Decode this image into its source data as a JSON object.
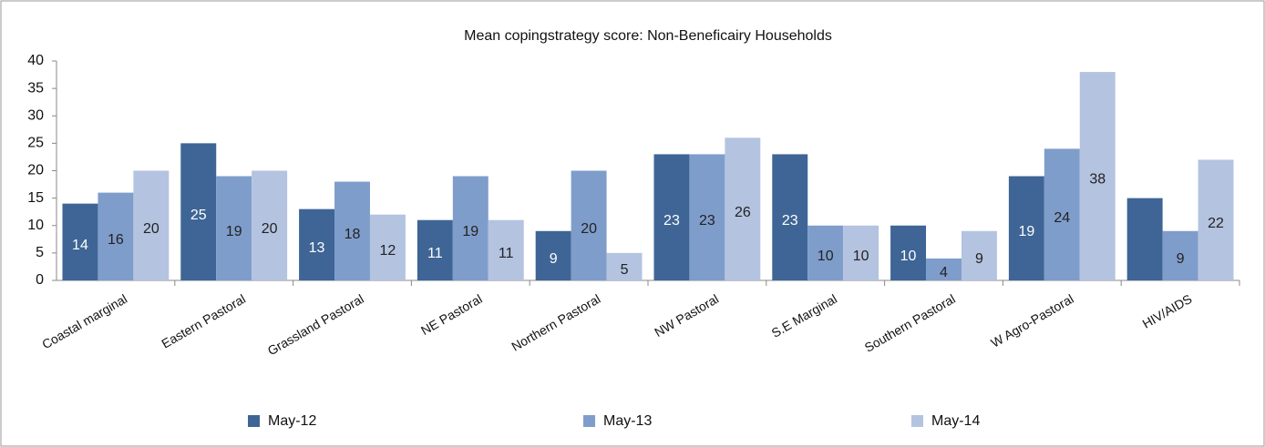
{
  "chart_data": {
    "type": "bar",
    "title": "Mean copingstrategy score:  Non-Beneficairy Households",
    "categories": [
      "Coastal marginal",
      "Eastern Pastoral",
      "Grassland Pastoral",
      "NE Pastoral",
      "Northern Pastoral",
      "NW Pastoral",
      "S.E Marginal",
      "Southern Pastoral",
      "W Agro-Pastoral",
      "HIV/AIDS"
    ],
    "series": [
      {
        "name": "May-12",
        "color": "#3e6595",
        "values": [
          14,
          25,
          13,
          11,
          9,
          23,
          23,
          10,
          19,
          15
        ],
        "value_labels": [
          "14",
          "25",
          "13",
          "11",
          "9",
          "23",
          "23",
          "10",
          "19",
          null
        ]
      },
      {
        "name": "May-13",
        "color": "#7f9dcb",
        "values": [
          16,
          19,
          18,
          19,
          20,
          23,
          10,
          4,
          24,
          9
        ]
      },
      {
        "name": "May-14",
        "color": "#b4c3e0",
        "values": [
          20,
          20,
          12,
          11,
          5,
          26,
          10,
          9,
          38,
          22
        ]
      }
    ],
    "ylim": [
      0,
      40
    ],
    "yticks": [
      0,
      5,
      10,
      15,
      20,
      25,
      30,
      35,
      40
    ],
    "grid": false,
    "legend": "bottom"
  }
}
